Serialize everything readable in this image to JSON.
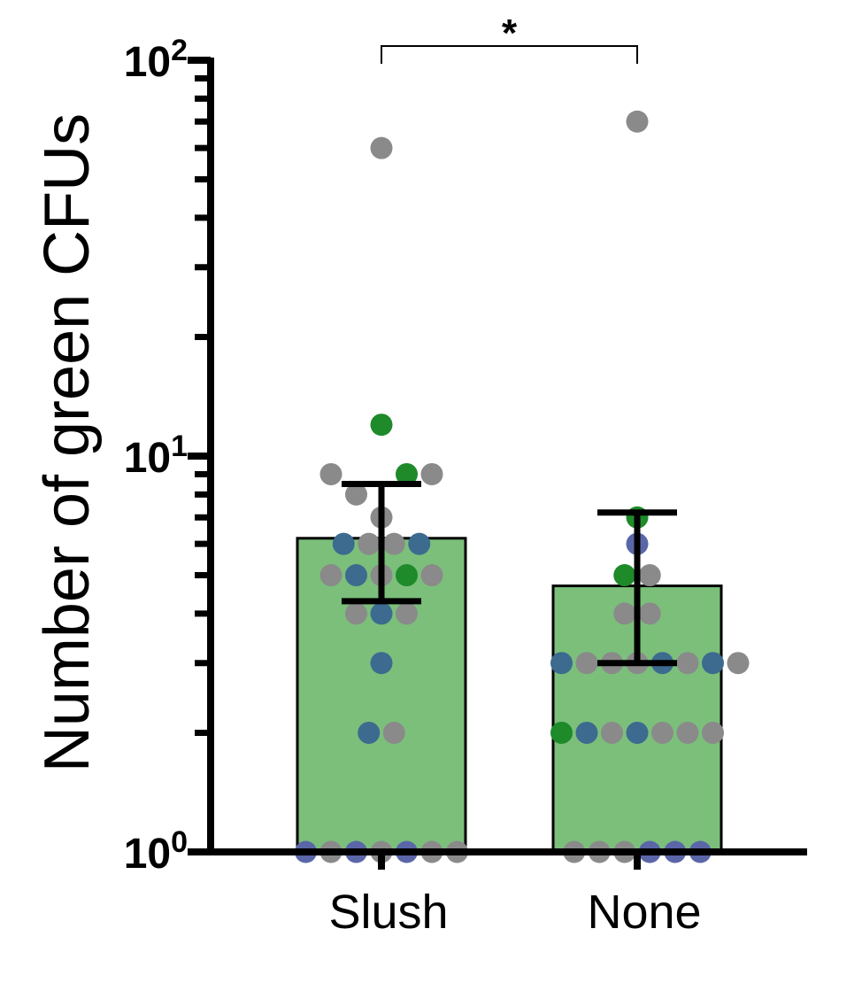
{
  "chart_data": {
    "type": "bar",
    "ylabel": "Number of green CFUs",
    "yscale": "log10",
    "ylim": [
      1,
      100
    ],
    "y_ticks": [
      {
        "value": 1,
        "base": "10",
        "exp": "0"
      },
      {
        "value": 10,
        "base": "10",
        "exp": "1"
      },
      {
        "value": 100,
        "base": "10",
        "exp": "2"
      }
    ],
    "categories": [
      "Slush",
      "None"
    ],
    "bars": [
      {
        "category": "Slush",
        "value": 6.2,
        "error_low": 4.3,
        "error_high": 8.5
      },
      {
        "category": "None",
        "value": 4.7,
        "error_low": 3.0,
        "error_high": 7.2
      }
    ],
    "bar_color": "#7bbf7b",
    "point_colors": {
      "gray": "#8a8a8a",
      "blue": "#3d6a8f",
      "navy": "#5a66a8",
      "green": "#1e8a2a"
    },
    "points": [
      {
        "category": "Slush",
        "y": 60,
        "color": "gray",
        "offset": 0
      },
      {
        "category": "Slush",
        "y": 12,
        "color": "green",
        "offset": 0
      },
      {
        "category": "Slush",
        "y": 9,
        "color": "gray",
        "offset": -2
      },
      {
        "category": "Slush",
        "y": 9,
        "color": "green",
        "offset": 1
      },
      {
        "category": "Slush",
        "y": 9,
        "color": "gray",
        "offset": 2
      },
      {
        "category": "Slush",
        "y": 8,
        "color": "gray",
        "offset": -1
      },
      {
        "category": "Slush",
        "y": 7,
        "color": "gray",
        "offset": 0
      },
      {
        "category": "Slush",
        "y": 6,
        "color": "blue",
        "offset": -1.5
      },
      {
        "category": "Slush",
        "y": 6,
        "color": "gray",
        "offset": -0.5
      },
      {
        "category": "Slush",
        "y": 6,
        "color": "gray",
        "offset": 0.5
      },
      {
        "category": "Slush",
        "y": 6,
        "color": "blue",
        "offset": 1.5
      },
      {
        "category": "Slush",
        "y": 5,
        "color": "gray",
        "offset": -2
      },
      {
        "category": "Slush",
        "y": 5,
        "color": "blue",
        "offset": -1
      },
      {
        "category": "Slush",
        "y": 5,
        "color": "gray",
        "offset": 0
      },
      {
        "category": "Slush",
        "y": 5,
        "color": "green",
        "offset": 1
      },
      {
        "category": "Slush",
        "y": 5,
        "color": "gray",
        "offset": 2
      },
      {
        "category": "Slush",
        "y": 4,
        "color": "gray",
        "offset": -1
      },
      {
        "category": "Slush",
        "y": 4,
        "color": "blue",
        "offset": 0
      },
      {
        "category": "Slush",
        "y": 4,
        "color": "gray",
        "offset": 1
      },
      {
        "category": "Slush",
        "y": 3,
        "color": "blue",
        "offset": 0
      },
      {
        "category": "Slush",
        "y": 2,
        "color": "blue",
        "offset": -0.5
      },
      {
        "category": "Slush",
        "y": 2,
        "color": "gray",
        "offset": 0.5
      },
      {
        "category": "Slush",
        "y": 1,
        "color": "navy",
        "offset": -3
      },
      {
        "category": "Slush",
        "y": 1,
        "color": "gray",
        "offset": -2
      },
      {
        "category": "Slush",
        "y": 1,
        "color": "navy",
        "offset": -1
      },
      {
        "category": "Slush",
        "y": 1,
        "color": "gray",
        "offset": 0
      },
      {
        "category": "Slush",
        "y": 1,
        "color": "navy",
        "offset": 1
      },
      {
        "category": "Slush",
        "y": 1,
        "color": "gray",
        "offset": 2
      },
      {
        "category": "Slush",
        "y": 1,
        "color": "gray",
        "offset": 3
      },
      {
        "category": "None",
        "y": 70,
        "color": "gray",
        "offset": 0
      },
      {
        "category": "None",
        "y": 7,
        "color": "green",
        "offset": 0
      },
      {
        "category": "None",
        "y": 6,
        "color": "navy",
        "offset": 0
      },
      {
        "category": "None",
        "y": 5,
        "color": "green",
        "offset": -0.5
      },
      {
        "category": "None",
        "y": 5,
        "color": "gray",
        "offset": 0.5
      },
      {
        "category": "None",
        "y": 4,
        "color": "gray",
        "offset": -0.5
      },
      {
        "category": "None",
        "y": 4,
        "color": "gray",
        "offset": 0.5
      },
      {
        "category": "None",
        "y": 3,
        "color": "blue",
        "offset": -3
      },
      {
        "category": "None",
        "y": 3,
        "color": "gray",
        "offset": -2
      },
      {
        "category": "None",
        "y": 3,
        "color": "gray",
        "offset": -1
      },
      {
        "category": "None",
        "y": 3,
        "color": "gray",
        "offset": 0
      },
      {
        "category": "None",
        "y": 3,
        "color": "blue",
        "offset": 1
      },
      {
        "category": "None",
        "y": 3,
        "color": "gray",
        "offset": 2
      },
      {
        "category": "None",
        "y": 3,
        "color": "blue",
        "offset": 3
      },
      {
        "category": "None",
        "y": 3,
        "color": "gray",
        "offset": 4
      },
      {
        "category": "None",
        "y": 2,
        "color": "green",
        "offset": -3
      },
      {
        "category": "None",
        "y": 2,
        "color": "blue",
        "offset": -2
      },
      {
        "category": "None",
        "y": 2,
        "color": "gray",
        "offset": -1
      },
      {
        "category": "None",
        "y": 2,
        "color": "blue",
        "offset": 0
      },
      {
        "category": "None",
        "y": 2,
        "color": "gray",
        "offset": 1
      },
      {
        "category": "None",
        "y": 2,
        "color": "gray",
        "offset": 2
      },
      {
        "category": "None",
        "y": 2,
        "color": "gray",
        "offset": 3
      },
      {
        "category": "None",
        "y": 1,
        "color": "gray",
        "offset": -2.5
      },
      {
        "category": "None",
        "y": 1,
        "color": "gray",
        "offset": -1.5
      },
      {
        "category": "None",
        "y": 1,
        "color": "gray",
        "offset": -0.5
      },
      {
        "category": "None",
        "y": 1,
        "color": "navy",
        "offset": 0.5
      },
      {
        "category": "None",
        "y": 1,
        "color": "navy",
        "offset": 1.5
      },
      {
        "category": "None",
        "y": 1,
        "color": "navy",
        "offset": 2.5
      }
    ],
    "significance": {
      "from": "Slush",
      "to": "None",
      "label": "*"
    }
  }
}
